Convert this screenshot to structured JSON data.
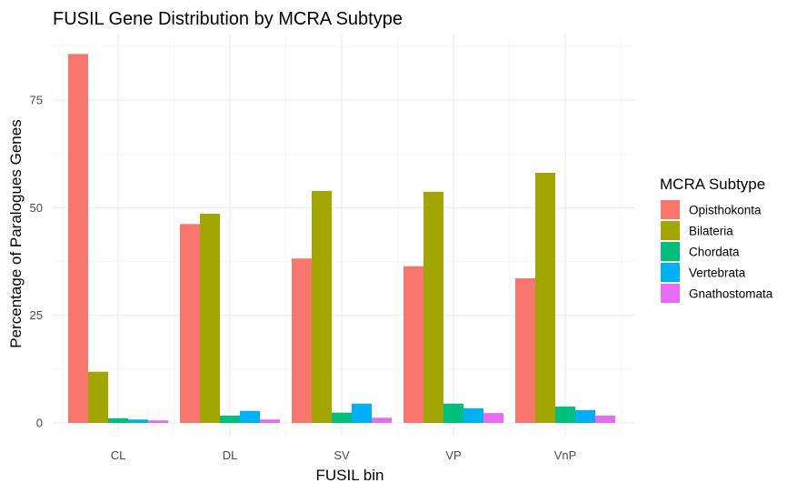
{
  "chart_data": {
    "type": "bar",
    "title": "FUSIL Gene Distribution by MCRA Subtype",
    "xlabel": "FUSIL bin",
    "ylabel": "Percentage of Paralogues Genes",
    "categories": [
      "CL",
      "DL",
      "SV",
      "VP",
      "VnP"
    ],
    "ylim": [
      0,
      88
    ],
    "yticks": [
      0,
      25,
      50,
      75
    ],
    "grid": true,
    "legend": {
      "title": "MCRA Subtype",
      "position": "right"
    },
    "series": [
      {
        "name": "Opisthokonta",
        "color": "#F8766D",
        "values": [
          85.7,
          46.2,
          38.2,
          36.4,
          33.6
        ]
      },
      {
        "name": "Bilateria",
        "color": "#A3A500",
        "values": [
          11.9,
          48.6,
          53.9,
          53.7,
          58.1
        ]
      },
      {
        "name": "Chordata",
        "color": "#00BF7D",
        "values": [
          1.1,
          1.7,
          2.4,
          4.5,
          3.8
        ]
      },
      {
        "name": "Vertebrata",
        "color": "#00B0F6",
        "values": [
          0.8,
          2.8,
          4.5,
          3.4,
          3.0
        ]
      },
      {
        "name": "Gnathostomata",
        "color": "#E76BF3",
        "values": [
          0.6,
          0.8,
          1.2,
          2.3,
          1.7
        ]
      }
    ]
  }
}
